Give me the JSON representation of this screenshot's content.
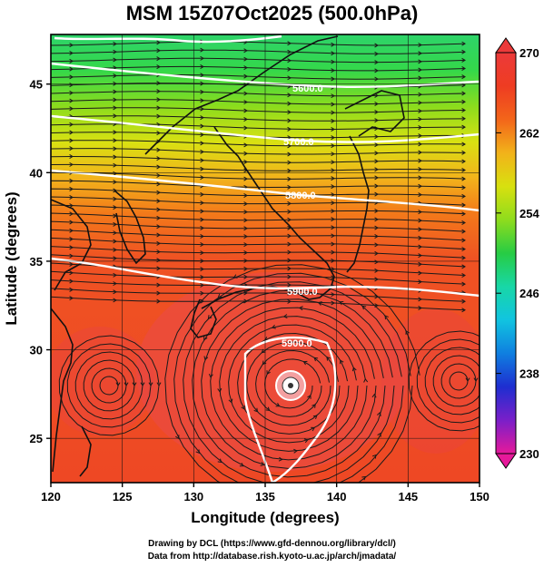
{
  "title": "MSM 15Z07Oct2025 (500.0hPa)",
  "axes": {
    "xlabel": "Longitude (degrees)",
    "ylabel": "Latitude  (degrees)",
    "xlim": [
      120,
      150
    ],
    "ylim": [
      22.5,
      47.8
    ],
    "xticks": [
      "120",
      "125",
      "130",
      "135",
      "140",
      "145",
      "150"
    ],
    "yticks": [
      "25",
      "30",
      "35",
      "40",
      "45"
    ]
  },
  "colorbar": {
    "min": 230,
    "max": 270,
    "tick_labels": [
      "270",
      "262",
      "254",
      "246",
      "238",
      "230"
    ],
    "stops": [
      "#e6199a",
      "#7a1fc9",
      "#1e2ed0",
      "#0f7fe0",
      "#11c4e0",
      "#18d7a6",
      "#27cc44",
      "#8fdc1d",
      "#d8e00f",
      "#f2b21a",
      "#f3651a",
      "#ee3c22",
      "#ec3a3a"
    ]
  },
  "contours": [
    {
      "label": "5600.0"
    },
    {
      "label": "5700.0"
    },
    {
      "label": "5800.0"
    },
    {
      "label": "5900.0"
    },
    {
      "label": "5900.0"
    }
  ],
  "cyclone": {
    "name": "typhoon-eye",
    "lon": 136.8,
    "lat": 28.6
  },
  "credits": {
    "line1": "Drawing by DCL (https://www.gfd-dennou.org/library/dcl/)",
    "line2": "Data from http://database.rish.kyoto-u.ac.jp/arch/jmadata/"
  }
}
